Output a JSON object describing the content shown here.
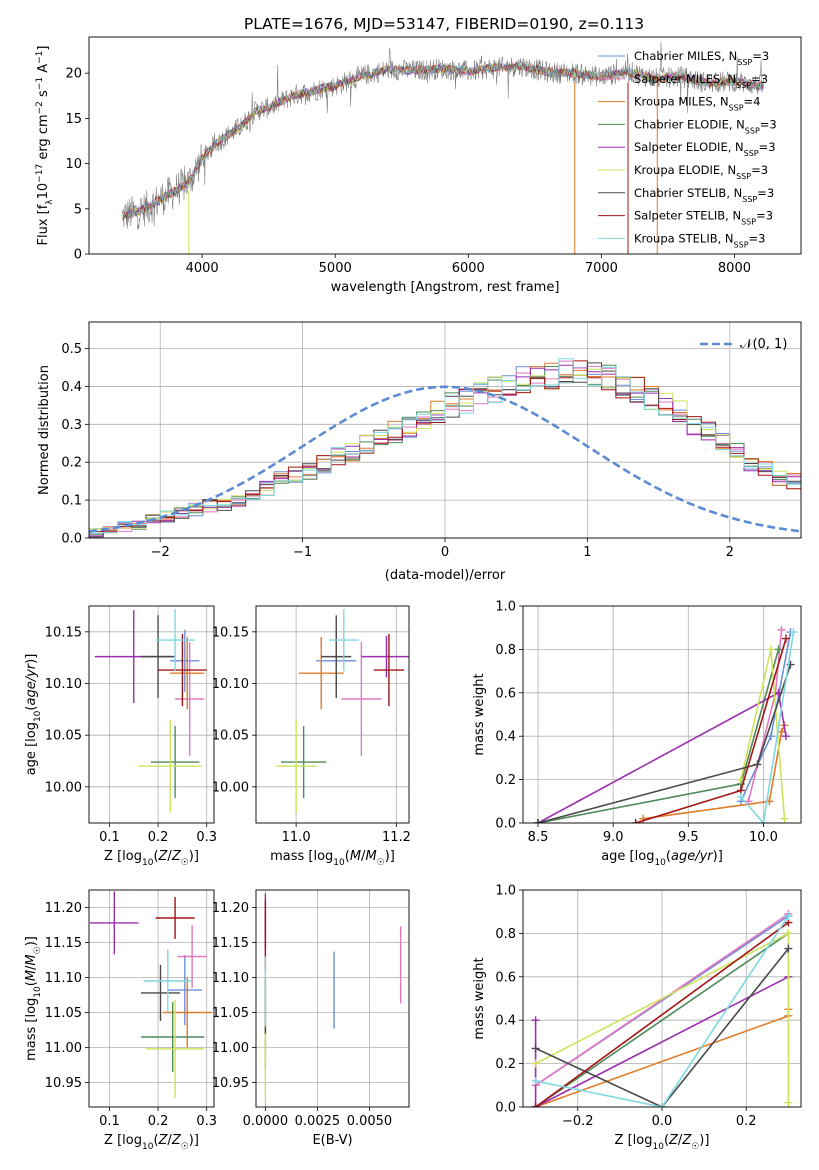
{
  "figure": {
    "title": "PLATE=1676, MJD=53147, FIBERID=0190, z=0.113",
    "legend_entries": [
      {
        "label": "Chabrier MILES, N",
        "sub": "SSP",
        "suffix": "=3",
        "color": "#6c8fd8"
      },
      {
        "label": "Salpeter MILES, N",
        "sub": "SSP",
        "suffix": "=3",
        "color": "#e377c2"
      },
      {
        "label": "Kroupa MILES, N",
        "sub": "SSP",
        "suffix": "=4",
        "color": "#e07b28"
      },
      {
        "label": "Chabrier ELODIE, N",
        "sub": "SSP",
        "suffix": "=3",
        "color": "#4e8a5a"
      },
      {
        "label": "Salpeter ELODIE, N",
        "sub": "SSP",
        "suffix": "=3",
        "color": "#9b2fae"
      },
      {
        "label": "Kroupa ELODIE, N",
        "sub": "SSP",
        "suffix": "=3",
        "color": "#cde25a"
      },
      {
        "label": "Chabrier STELIB, N",
        "sub": "SSP",
        "suffix": "=3",
        "color": "#4a4a4a"
      },
      {
        "label": "Salpeter STELIB, N",
        "sub": "SSP",
        "suffix": "=3",
        "color": "#a31515"
      },
      {
        "label": "Kroupa STELIB, N",
        "sub": "SSP",
        "suffix": "=3",
        "color": "#7fd8e0"
      }
    ]
  },
  "chart_data": [
    {
      "id": "spectrum",
      "type": "line",
      "title": "PLATE=1676, MJD=53147, FIBERID=0190, z=0.113",
      "xlabel": "wavelength [Angstrom, rest frame]",
      "ylabel_parts": [
        "Flux [f",
        "λ",
        "10",
        "−17",
        " erg cm",
        "−2",
        " s",
        "−1",
        " A",
        "−1",
        "]"
      ],
      "xlim": [
        3150,
        8500
      ],
      "ylim": [
        0,
        24
      ],
      "xticks": [
        4000,
        5000,
        6000,
        7000,
        8000
      ],
      "yticks": [
        0,
        5,
        10,
        15,
        20
      ],
      "data_envelope": {
        "x": [
          3400,
          3500,
          3600,
          3700,
          3800,
          3900,
          4000,
          4100,
          4200,
          4300,
          4400,
          4500,
          4600,
          4700,
          4800,
          4900,
          5000,
          5200,
          5400,
          5600,
          5800,
          6000,
          6200,
          6400,
          6600,
          6800,
          7000,
          7200,
          7400,
          7600,
          7800,
          8000,
          8200
        ],
        "y": [
          4.2,
          4.6,
          5.2,
          6.2,
          7.0,
          8.0,
          10.5,
          12.2,
          13.2,
          14.2,
          15.8,
          16.2,
          16.9,
          17.6,
          17.9,
          18.3,
          18.6,
          19.7,
          20.4,
          20.3,
          20.5,
          20.2,
          20.6,
          20.8,
          20.1,
          20.0,
          19.6,
          20.2,
          19.4,
          19.6,
          18.9,
          19.1,
          18.6
        ]
      }
    },
    {
      "id": "residuals",
      "type": "histogram",
      "xlabel": "(data-model)/error",
      "ylabel": "Normed distribution",
      "xlim": [
        -2.5,
        2.5
      ],
      "ylim": [
        0,
        0.57
      ],
      "xticks": [
        -2,
        -1,
        0,
        1,
        2
      ],
      "yticks": [
        0.0,
        0.1,
        0.2,
        0.3,
        0.4,
        0.5
      ],
      "legend": "𝒩(0, 1)",
      "bin_width": 0.1,
      "bins_start": -2.5,
      "mean_hist": [
        0.015,
        0.02,
        0.03,
        0.035,
        0.05,
        0.058,
        0.066,
        0.075,
        0.085,
        0.085,
        0.1,
        0.115,
        0.13,
        0.155,
        0.168,
        0.175,
        0.195,
        0.215,
        0.225,
        0.245,
        0.265,
        0.28,
        0.295,
        0.31,
        0.33,
        0.35,
        0.36,
        0.38,
        0.39,
        0.4,
        0.415,
        0.42,
        0.43,
        0.44,
        0.44,
        0.43,
        0.42,
        0.405,
        0.39,
        0.37,
        0.35,
        0.33,
        0.3,
        0.28,
        0.25,
        0.225,
        0.2,
        0.18,
        0.16,
        0.15,
        0.135,
        0.12,
        0.1,
        0.09,
        0.085,
        0.07,
        0.06,
        0.05,
        0.04,
        0.035,
        0.03,
        0.025,
        0.02,
        0.02,
        0.015,
        0.015,
        0.012,
        0.01,
        0.01,
        0.01
      ],
      "series": [
        {
          "name": "Chabrier MILES",
          "color": "#6c8fd8"
        },
        {
          "name": "Salpeter MILES",
          "color": "#e377c2"
        },
        {
          "name": "Kroupa MILES",
          "color": "#e07b28"
        },
        {
          "name": "Chabrier ELODIE",
          "color": "#4e8a5a"
        },
        {
          "name": "Salpeter ELODIE",
          "color": "#9b2fae"
        },
        {
          "name": "Kroupa ELODIE",
          "color": "#cde25a"
        },
        {
          "name": "Chabrier STELIB",
          "color": "#4a4a4a"
        },
        {
          "name": "Salpeter STELIB",
          "color": "#a31515"
        },
        {
          "name": "Kroupa STELIB",
          "color": "#7fd8e0"
        }
      ]
    },
    {
      "id": "age-vs-Z",
      "type": "scatter",
      "xlabel": "Z [log10(Z/Z☉)]",
      "ylabel": "age [log10(age/yr)]",
      "xlim": [
        0.058,
        0.315
      ],
      "ylim": [
        9.965,
        10.175
      ],
      "xticks": [
        0.1,
        0.2,
        0.3
      ],
      "yticks": [
        10.0,
        10.05,
        10.1,
        10.15
      ],
      "points": [
        {
          "x": 0.255,
          "y": 10.122,
          "xerr": 0.03,
          "yerr": 0.03,
          "color": "#6c8fd8"
        },
        {
          "x": 0.265,
          "y": 10.085,
          "xerr": 0.03,
          "yerr": 0.055,
          "color": "#e377c2"
        },
        {
          "x": 0.26,
          "y": 10.11,
          "xerr": 0.035,
          "yerr": 0.035,
          "color": "#e07b28"
        },
        {
          "x": 0.235,
          "y": 10.024,
          "xerr": 0.05,
          "yerr": 0.035,
          "color": "#4e8a5a"
        },
        {
          "x": 0.15,
          "y": 10.126,
          "xerr": 0.08,
          "yerr": 0.045,
          "color": "#9b2fae"
        },
        {
          "x": 0.225,
          "y": 10.02,
          "xerr": 0.065,
          "yerr": 0.045,
          "color": "#cde25a"
        },
        {
          "x": 0.2,
          "y": 10.126,
          "xerr": 0.035,
          "yerr": 0.04,
          "color": "#4a4a4a"
        },
        {
          "x": 0.25,
          "y": 10.113,
          "xerr": 0.05,
          "yerr": 0.035,
          "color": "#a31515"
        },
        {
          "x": 0.235,
          "y": 10.142,
          "xerr": 0.04,
          "yerr": 0.03,
          "color": "#7fd8e0"
        }
      ]
    },
    {
      "id": "age-vs-mass",
      "type": "scatter",
      "xlabel": "mass [log10(M/M☉)]",
      "ylabel": "",
      "xlim": [
        10.92,
        11.225
      ],
      "ylim": [
        9.965,
        10.175
      ],
      "xticks": [
        11.0,
        11.2
      ],
      "yticks": [
        10.0,
        10.05,
        10.1,
        10.15
      ],
      "points": [
        {
          "x": 11.08,
          "y": 10.122,
          "xerr": 0.04,
          "yerr": 0.03,
          "color": "#6c8fd8"
        },
        {
          "x": 11.13,
          "y": 10.085,
          "xerr": 0.04,
          "yerr": 0.055,
          "color": "#e377c2"
        },
        {
          "x": 11.05,
          "y": 10.11,
          "xerr": 0.045,
          "yerr": 0.035,
          "color": "#e07b28"
        },
        {
          "x": 11.015,
          "y": 10.024,
          "xerr": 0.045,
          "yerr": 0.035,
          "color": "#4e8a5a"
        },
        {
          "x": 11.18,
          "y": 10.126,
          "xerr": 0.05,
          "yerr": 0.02,
          "color": "#9b2fae"
        },
        {
          "x": 11.0,
          "y": 10.02,
          "xerr": 0.04,
          "yerr": 0.045,
          "color": "#cde25a"
        },
        {
          "x": 11.08,
          "y": 10.126,
          "xerr": 0.03,
          "yerr": 0.04,
          "color": "#4a4a4a"
        },
        {
          "x": 11.185,
          "y": 10.113,
          "xerr": 0.03,
          "yerr": 0.035,
          "color": "#a31515"
        },
        {
          "x": 11.095,
          "y": 10.142,
          "xerr": 0.03,
          "yerr": 0.03,
          "color": "#7fd8e0"
        }
      ]
    },
    {
      "id": "weight-vs-age",
      "type": "line",
      "xlabel": "age [log10(age/yr)]",
      "ylabel": "mass weight",
      "xlim": [
        8.4,
        10.25
      ],
      "ylim": [
        0,
        1
      ],
      "xticks": [
        8.5,
        9.0,
        9.5,
        10.0
      ],
      "yticks": [
        0.0,
        0.2,
        0.4,
        0.6,
        0.8,
        1.0
      ],
      "series": [
        {
          "name": "Chabrier MILES",
          "color": "#6c8fd8",
          "x": [
            9.85,
            10.05,
            10.18
          ],
          "y": [
            0.1,
            0.4,
            0.88
          ]
        },
        {
          "name": "Salpeter MILES",
          "color": "#e377c2",
          "x": [
            9.9,
            10.08,
            10.12
          ],
          "y": [
            0.1,
            0.6,
            0.89
          ]
        },
        {
          "name": "Kroupa MILES",
          "color": "#e07b28",
          "x": [
            9.2,
            10.04,
            10.12,
            10.14
          ],
          "y": [
            0.02,
            0.1,
            0.42,
            0.45
          ]
        },
        {
          "name": "Chabrier ELODIE",
          "color": "#4e8a5a",
          "x": [
            8.5,
            9.85,
            10.1
          ],
          "y": [
            0.0,
            0.18,
            0.8
          ]
        },
        {
          "name": "Salpeter ELODIE",
          "color": "#9b2fae",
          "x": [
            8.5,
            10.1,
            10.15
          ],
          "y": [
            0.0,
            0.6,
            0.4
          ]
        },
        {
          "name": "Kroupa ELODIE",
          "color": "#cde25a",
          "x": [
            9.85,
            10.05,
            10.14
          ],
          "y": [
            0.2,
            0.8,
            0.02
          ]
        },
        {
          "name": "Chabrier STELIB",
          "color": "#4a4a4a",
          "x": [
            8.5,
            9.96,
            10.18
          ],
          "y": [
            0.0,
            0.27,
            0.73
          ]
        },
        {
          "name": "Salpeter STELIB",
          "color": "#a31515",
          "x": [
            9.15,
            9.85,
            10.15
          ],
          "y": [
            0.0,
            0.15,
            0.85
          ]
        },
        {
          "name": "Kroupa STELIB",
          "color": "#7fd8e0",
          "x": [
            9.85,
            10.0,
            10.2
          ],
          "y": [
            0.12,
            0.0,
            0.88
          ]
        }
      ]
    },
    {
      "id": "mass-vs-Z",
      "type": "scatter",
      "xlabel": "Z [log10(Z/Z☉)]",
      "ylabel": "mass [log10(M/M☉)]",
      "xlim": [
        0.058,
        0.315
      ],
      "ylim": [
        10.915,
        11.225
      ],
      "xticks": [
        0.1,
        0.2,
        0.3
      ],
      "yticks": [
        10.95,
        11.0,
        11.05,
        11.1,
        11.15,
        11.2
      ],
      "points": [
        {
          "x": 0.255,
          "y": 11.082,
          "xerr": 0.035,
          "yerr": 0.05,
          "color": "#6c8fd8"
        },
        {
          "x": 0.27,
          "y": 11.13,
          "xerr": 0.03,
          "yerr": 0.045,
          "color": "#e377c2"
        },
        {
          "x": 0.26,
          "y": 11.05,
          "xerr": 0.05,
          "yerr": 0.05,
          "color": "#e07b28"
        },
        {
          "x": 0.23,
          "y": 11.015,
          "xerr": 0.065,
          "yerr": 0.05,
          "color": "#4e8a5a"
        },
        {
          "x": 0.11,
          "y": 11.178,
          "xerr": 0.05,
          "yerr": 0.045,
          "color": "#9b2fae"
        },
        {
          "x": 0.235,
          "y": 10.998,
          "xerr": 0.06,
          "yerr": 0.07,
          "color": "#cde25a"
        },
        {
          "x": 0.205,
          "y": 11.078,
          "xerr": 0.04,
          "yerr": 0.04,
          "color": "#4a4a4a"
        },
        {
          "x": 0.235,
          "y": 11.185,
          "xerr": 0.04,
          "yerr": 0.03,
          "color": "#a31515"
        },
        {
          "x": 0.22,
          "y": 11.095,
          "xerr": 0.05,
          "yerr": 0.045,
          "color": "#7fd8e0"
        }
      ]
    },
    {
      "id": "mass-vs-EBV",
      "type": "scatter",
      "xlabel": "E(B-V)",
      "ylabel": "",
      "xlim": [
        -0.00045,
        0.0069
      ],
      "ylim": [
        10.915,
        11.225
      ],
      "xticks": [
        0.0,
        0.0025,
        0.005
      ],
      "xtick_labels": [
        "0.0000",
        "0.0025",
        "0.0050"
      ],
      "yticks": [
        10.95,
        11.0,
        11.05,
        11.1,
        11.15,
        11.2
      ],
      "points": [
        {
          "x": 0.0033,
          "y": 11.082,
          "yerr": 0.055,
          "color": "#6c8fd8"
        },
        {
          "x": 0.0065,
          "y": 11.118,
          "yerr": 0.055,
          "color": "#e377c2"
        },
        {
          "x": 0.0,
          "y": 11.045,
          "yerr": 0.05,
          "color": "#e07b28"
        },
        {
          "x": 0.0,
          "y": 11.02,
          "yerr": 0.05,
          "color": "#4e8a5a"
        },
        {
          "x": 0.0,
          "y": 11.18,
          "yerr": 0.04,
          "color": "#9b2fae"
        },
        {
          "x": 0.0,
          "y": 10.995,
          "yerr": 0.07,
          "color": "#cde25a"
        },
        {
          "x": 0.0,
          "y": 11.06,
          "yerr": 0.04,
          "color": "#4a4a4a"
        },
        {
          "x": 0.0,
          "y": 11.16,
          "yerr": 0.05,
          "color": "#a31515"
        },
        {
          "x": 0.0,
          "y": 11.08,
          "yerr": 0.05,
          "color": "#7fd8e0"
        }
      ]
    },
    {
      "id": "weight-vs-Z",
      "type": "line",
      "xlabel": "Z [log10(Z/Z☉)]",
      "ylabel": "mass weight",
      "xlim": [
        -0.33,
        0.33
      ],
      "ylim": [
        0,
        1
      ],
      "xticks": [
        -0.2,
        0.0,
        0.2
      ],
      "yticks": [
        0.0,
        0.2,
        0.4,
        0.6,
        0.8,
        1.0
      ],
      "series": [
        {
          "name": "Chabrier MILES",
          "color": "#6c8fd8",
          "x": [
            -0.3,
            0.3
          ],
          "y": [
            0.1,
            0.88
          ]
        },
        {
          "name": "Salpeter MILES",
          "color": "#e377c2",
          "x": [
            -0.3,
            0.3
          ],
          "y": [
            0.1,
            0.89
          ]
        },
        {
          "name": "Kroupa MILES",
          "color": "#e07b28",
          "x": [
            -0.3,
            0.3,
            0.3
          ],
          "y": [
            0.0,
            0.42,
            0.45
          ]
        },
        {
          "name": "Chabrier ELODIE",
          "color": "#4e8a5a",
          "x": [
            -0.3,
            0.3
          ],
          "y": [
            0.0,
            0.8
          ]
        },
        {
          "name": "Salpeter ELODIE",
          "color": "#9b2fae",
          "x": [
            -0.3,
            -0.3,
            0.3
          ],
          "y": [
            0.4,
            0.0,
            0.6
          ]
        },
        {
          "name": "Kroupa ELODIE",
          "color": "#cde25a",
          "x": [
            -0.3,
            0.3,
            0.3
          ],
          "y": [
            0.2,
            0.8,
            0.02
          ]
        },
        {
          "name": "Chabrier STELIB",
          "color": "#4a4a4a",
          "x": [
            -0.3,
            0.0,
            0.3
          ],
          "y": [
            0.27,
            0.0,
            0.73
          ]
        },
        {
          "name": "Salpeter STELIB",
          "color": "#a31515",
          "x": [
            -0.3,
            0.3
          ],
          "y": [
            0.0,
            0.85
          ]
        },
        {
          "name": "Kroupa STELIB",
          "color": "#7fd8e0",
          "x": [
            -0.3,
            0.0,
            0.3
          ],
          "y": [
            0.12,
            0.0,
            0.88
          ]
        }
      ]
    }
  ]
}
